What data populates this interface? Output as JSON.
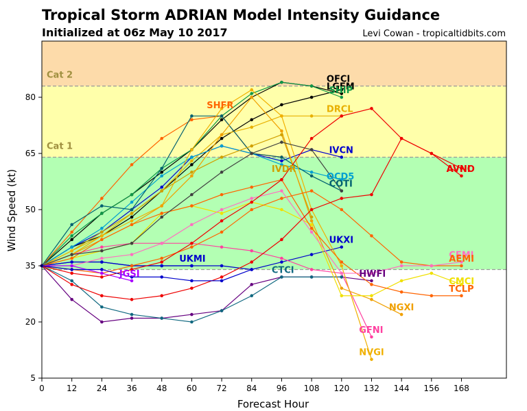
{
  "title": "Tropical Storm ADRIAN Model Intensity Guidance",
  "subtitle": "Initialized at 06z May 10 2017",
  "credit": "Levi Cowan - tropicaltidbits.com",
  "colors": {
    "cat2_band": "#fddbaa",
    "cat1_band": "#ffffaa",
    "ts_band": "#b3ffb3",
    "threshold_line": "#999999",
    "cat_label": "#a09040"
  },
  "chart_data": {
    "type": "line",
    "xlabel": "Forecast Hour",
    "ylabel": "Wind Speed (kt)",
    "xlim": [
      0,
      186
    ],
    "ylim": [
      5,
      95
    ],
    "xticks": [
      0,
      12,
      24,
      36,
      48,
      60,
      72,
      84,
      96,
      108,
      120,
      132,
      144,
      156,
      168
    ],
    "yticks": [
      5,
      20,
      35,
      50,
      65,
      80
    ],
    "category_bands": [
      {
        "label": "Cat 2",
        "from": 83,
        "to": 95
      },
      {
        "label": "Cat 1",
        "from": 64,
        "to": 83
      },
      {
        "label": "",
        "from": 34,
        "to": 64
      }
    ],
    "series": [
      {
        "name": "OFCI",
        "color": "#000000",
        "x": [
          0,
          12,
          24,
          36,
          48,
          60,
          72,
          84,
          96,
          108,
          120
        ],
        "y": [
          35,
          40,
          43,
          48,
          55,
          62,
          69,
          74,
          78,
          80,
          82
        ]
      },
      {
        "name": "LGEM",
        "color": "#000000",
        "x": [
          0,
          12,
          24,
          36,
          48,
          60,
          72,
          84,
          96,
          108,
          120
        ],
        "y": [
          35,
          42,
          49,
          54,
          60,
          66,
          74,
          80,
          84,
          83,
          81
        ]
      },
      {
        "name": "SHIP",
        "color": "#109848",
        "x": [
          0,
          12,
          24,
          36,
          48,
          60,
          72,
          84,
          96,
          108,
          120
        ],
        "y": [
          35,
          43,
          49,
          54,
          61,
          66,
          75,
          81,
          84,
          83,
          80
        ]
      },
      {
        "name": "SHFR",
        "color": "#ff6400",
        "x": [
          0,
          12,
          24,
          36,
          48,
          60,
          72,
          84,
          96
        ],
        "y": [
          35,
          44,
          53,
          62,
          69,
          74,
          75,
          65,
          64
        ]
      },
      {
        "name": "DRCL",
        "color": "#e8b000",
        "x": [
          0,
          12,
          24,
          36,
          48,
          60,
          72,
          84,
          96,
          108,
          120
        ],
        "y": [
          35,
          38,
          43,
          49,
          55,
          63,
          70,
          72,
          75,
          75,
          75
        ]
      },
      {
        "name": "IVCN",
        "color": "#0000cc",
        "x": [
          0,
          12,
          24,
          36,
          48,
          60,
          72,
          84,
          96,
          108,
          120
        ],
        "y": [
          35,
          40,
          44,
          50,
          56,
          64,
          67,
          65,
          63,
          66,
          64
        ]
      },
      {
        "name": "OCD5",
        "color": "#00a0d0",
        "x": [
          0,
          12,
          24,
          36,
          48,
          60,
          72,
          84,
          96,
          108,
          120
        ],
        "y": [
          35,
          40,
          45,
          52,
          59,
          64,
          67,
          65,
          62,
          60,
          58
        ]
      },
      {
        "name": "COTI",
        "color": "#006070",
        "x": [
          0,
          12,
          24,
          36,
          48,
          60,
          72,
          84,
          96,
          108,
          120
        ],
        "y": [
          35,
          46,
          51,
          50,
          61,
          75,
          75,
          65,
          64,
          59,
          55
        ]
      },
      {
        "name": "IVDR",
        "color": "#d0a000",
        "x": [
          0,
          12,
          24,
          36,
          48,
          60,
          72,
          84,
          96,
          108
        ],
        "y": [
          35,
          39,
          44,
          49,
          55,
          60,
          64,
          67,
          70,
          48
        ]
      },
      {
        "name": "UKXI",
        "color": "#0000cc",
        "x": [
          0,
          12,
          24,
          36,
          48,
          60,
          72,
          84,
          96,
          108,
          120
        ],
        "y": [
          35,
          36,
          36,
          35,
          35,
          35,
          35,
          34,
          36,
          38,
          40
        ]
      },
      {
        "name": "UKMI",
        "color": "#0000cc",
        "x": [
          0,
          12,
          24,
          36,
          48,
          60
        ],
        "y": [
          35,
          36,
          36,
          35,
          35,
          35
        ]
      },
      {
        "name": "HWFI",
        "color": "#660080",
        "x": [
          0,
          12,
          24,
          36,
          48,
          60,
          72,
          84,
          96,
          108,
          120,
          132
        ],
        "y": [
          35,
          26,
          20,
          21,
          21,
          22,
          23,
          30,
          32,
          32,
          32,
          31
        ]
      },
      {
        "name": "CTCI",
        "color": "#106880",
        "x": [
          0,
          12,
          24,
          36,
          48,
          60,
          72,
          84,
          96,
          108,
          120
        ],
        "y": [
          35,
          31,
          24,
          22,
          21,
          20,
          23,
          27,
          32,
          32,
          32
        ]
      },
      {
        "name": "GFNI",
        "color": "#ff40a0",
        "x": [
          0,
          12,
          24,
          36,
          48,
          60,
          72,
          84,
          96,
          108,
          120,
          132
        ],
        "y": [
          35,
          38,
          40,
          41,
          41,
          41,
          40,
          39,
          37,
          34,
          33,
          16
        ]
      },
      {
        "name": "NVGI",
        "color": "#f0b000",
        "x": [
          0,
          12,
          24,
          36,
          48,
          60,
          72,
          84,
          96,
          108,
          120,
          132
        ],
        "y": [
          35,
          39,
          43,
          47,
          51,
          66,
          77,
          82,
          75,
          50,
          35,
          10
        ]
      },
      {
        "name": "NGXI",
        "color": "#f0a000",
        "x": [
          0,
          12,
          24,
          36,
          48,
          60,
          72,
          84,
          96,
          108,
          120,
          132,
          144
        ],
        "y": [
          35,
          38,
          42,
          46,
          51,
          59,
          70,
          80,
          71,
          47,
          29,
          26,
          22
        ]
      },
      {
        "name": "CMCI",
        "color": "#f0e000",
        "x": [
          0,
          12,
          24,
          36,
          48,
          60,
          72,
          84,
          96,
          108,
          120,
          132,
          144,
          156,
          168
        ],
        "y": [
          35,
          37,
          39,
          41,
          49,
          51,
          49,
          52,
          50,
          46,
          27,
          27,
          31,
          33,
          30
        ]
      },
      {
        "name": "TCLP",
        "color": "#ff6400",
        "x": [
          0,
          12,
          24,
          36,
          48,
          60,
          72,
          84,
          96,
          108,
          120,
          132,
          144,
          156,
          168
        ],
        "y": [
          35,
          34,
          33,
          35,
          37,
          40,
          44,
          50,
          53,
          55,
          50,
          43,
          36,
          35,
          35
        ]
      },
      {
        "name": "AEMI",
        "color": "#ff6400",
        "x": [
          0,
          12,
          24,
          36,
          48,
          60,
          72,
          84,
          96,
          108,
          120,
          132,
          144,
          156,
          168
        ],
        "y": [
          35,
          37,
          42,
          46,
          49,
          51,
          54,
          56,
          58,
          45,
          36,
          30,
          28,
          27,
          27
        ]
      },
      {
        "name": "CEMI",
        "color": "#ff70c0",
        "x": [
          0,
          12,
          24,
          36,
          48,
          60,
          72,
          84,
          96,
          108,
          120,
          132,
          144,
          156,
          168
        ],
        "y": [
          35,
          35,
          37,
          38,
          41,
          46,
          50,
          53,
          55,
          44,
          33,
          33,
          35,
          35,
          36
        ]
      },
      {
        "name": "JGSI",
        "color": "#aa00ff",
        "x": [
          0,
          12,
          24,
          36
        ],
        "y": [
          35,
          35,
          33,
          31
        ]
      },
      {
        "name": "AVNI",
        "color": "#ee0000",
        "x": [
          0,
          12,
          24,
          36,
          48,
          60,
          72,
          84,
          96,
          108,
          120,
          132,
          144,
          156,
          168
        ],
        "y": [
          35,
          30,
          27,
          26,
          27,
          29,
          32,
          36,
          42,
          50,
          53,
          54,
          69,
          65,
          59
        ]
      },
      {
        "name": "AVNO",
        "color": "#ee0000",
        "x": [
          0,
          12,
          24,
          36,
          48,
          60,
          72,
          84,
          96,
          108,
          120,
          132,
          144,
          156,
          168
        ],
        "y": [
          35,
          33,
          32,
          34,
          36,
          41,
          47,
          52,
          58,
          69,
          75,
          77,
          69,
          65,
          61
        ]
      },
      {
        "name": "",
        "color": "#404040",
        "x": [
          0,
          12,
          24,
          36,
          48,
          60,
          72,
          84,
          96,
          108,
          120
        ],
        "y": [
          35,
          38,
          39,
          41,
          48,
          54,
          60,
          65,
          68,
          66,
          55
        ]
      },
      {
        "name": "",
        "color": "#0000cc",
        "x": [
          0,
          12,
          24,
          36,
          48,
          60,
          72,
          84
        ],
        "y": [
          35,
          34,
          34,
          32,
          32,
          31,
          31,
          34
        ]
      }
    ],
    "labels": [
      {
        "text": "OFCI",
        "x": 114,
        "y": 85,
        "color": "#000000"
      },
      {
        "text": "LGEM",
        "x": 114,
        "y": 83,
        "color": "#000000"
      },
      {
        "text": "SHIP",
        "x": 115,
        "y": 82,
        "color": "#109848"
      },
      {
        "text": "SHFR",
        "x": 66,
        "y": 78,
        "color": "#ff6400"
      },
      {
        "text": "DRCL",
        "x": 114,
        "y": 77,
        "color": "#e8b000"
      },
      {
        "text": "IVCN",
        "x": 115,
        "y": 66,
        "color": "#0000cc"
      },
      {
        "text": "IVDR",
        "x": 92,
        "y": 61,
        "color": "#d0a000"
      },
      {
        "text": "OCD5",
        "x": 114,
        "y": 59,
        "color": "#00a0d0"
      },
      {
        "text": "COTI",
        "x": 115,
        "y": 57,
        "color": "#006070"
      },
      {
        "text": "UKXI",
        "x": 115,
        "y": 42,
        "color": "#0000cc"
      },
      {
        "text": "UKMI",
        "x": 55,
        "y": 37,
        "color": "#0000cc"
      },
      {
        "text": "CTCI",
        "x": 92,
        "y": 34,
        "color": "#106880"
      },
      {
        "text": "JGSI",
        "x": 31,
        "y": 33,
        "color": "#aa00ff"
      },
      {
        "text": "HWFI",
        "x": 127,
        "y": 33,
        "color": "#660080"
      },
      {
        "text": "NGXI",
        "x": 139,
        "y": 24,
        "color": "#f0a000"
      },
      {
        "text": "GFNI",
        "x": 127,
        "y": 18,
        "color": "#ff40a0"
      },
      {
        "text": "NVGI",
        "x": 127,
        "y": 12,
        "color": "#f0b000"
      },
      {
        "text": "CEMI",
        "x": 163,
        "y": 38,
        "color": "#ff70c0"
      },
      {
        "text": "AEMI",
        "x": 163,
        "y": 37,
        "color": "#ff6400"
      },
      {
        "text": "CMCI",
        "x": 163,
        "y": 31,
        "color": "#f0e000"
      },
      {
        "text": "TCLP",
        "x": 163,
        "y": 29,
        "color": "#ff6400"
      },
      {
        "text": "AVNO",
        "x": 162,
        "y": 61,
        "color": "#ee0000"
      },
      {
        "text": "AVNI",
        "x": 162,
        "y": 61,
        "color": "#ee0000"
      }
    ]
  }
}
